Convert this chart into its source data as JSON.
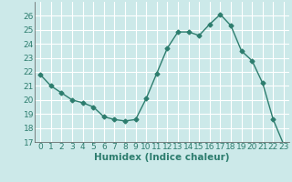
{
  "x": [
    0,
    1,
    2,
    3,
    4,
    5,
    6,
    7,
    8,
    9,
    10,
    11,
    12,
    13,
    14,
    15,
    16,
    17,
    18,
    19,
    20,
    21,
    22,
    23
  ],
  "y": [
    21.8,
    21.0,
    20.5,
    20.0,
    19.8,
    19.5,
    18.8,
    18.6,
    18.5,
    18.6,
    20.1,
    21.9,
    23.7,
    24.85,
    24.85,
    24.6,
    25.4,
    26.1,
    25.3,
    23.5,
    22.8,
    21.2,
    18.6,
    16.8
  ],
  "line_color": "#2d7d6e",
  "marker": "D",
  "marker_size": 2.5,
  "bg_color": "#cce9e9",
  "grid_color": "#ffffff",
  "xlabel": "Humidex (Indice chaleur)",
  "ylim": [
    17,
    27
  ],
  "xlim": [
    -0.5,
    23.5
  ],
  "yticks": [
    17,
    18,
    19,
    20,
    21,
    22,
    23,
    24,
    25,
    26
  ],
  "xticks": [
    0,
    1,
    2,
    3,
    4,
    5,
    6,
    7,
    8,
    9,
    10,
    11,
    12,
    13,
    14,
    15,
    16,
    17,
    18,
    19,
    20,
    21,
    22,
    23
  ],
  "xlabel_fontsize": 7.5,
  "tick_fontsize": 6.5
}
